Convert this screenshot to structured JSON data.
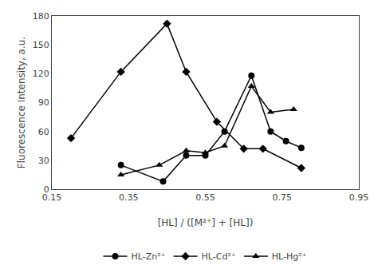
{
  "chart_data": {
    "type": "line",
    "xlabel": "[HL] / ([M²⁺] + [HL])",
    "ylabel": "Fluorescence Intensity, a.u.",
    "series": [
      {
        "name": "HL-Zn²⁺",
        "color": "black",
        "marker": "circle",
        "x": [
          0.33,
          0.44,
          0.5,
          0.55,
          0.6,
          0.67,
          0.72,
          0.76,
          0.8
        ],
        "values": [
          25,
          8,
          35,
          35,
          60,
          118,
          60,
          50,
          43
        ]
      },
      {
        "name": "HL-Cd²⁺",
        "color": "black",
        "marker": "diamond",
        "x": [
          0.2,
          0.33,
          0.45,
          0.5,
          0.58,
          0.65,
          0.7,
          0.8
        ],
        "values": [
          53,
          122,
          172,
          122,
          70,
          42,
          42,
          22
        ]
      },
      {
        "name": "HL-Hg²⁺",
        "color": "black",
        "marker": "triangle-up",
        "x": [
          0.33,
          0.43,
          0.5,
          0.55,
          0.6,
          0.67,
          0.72,
          0.78
        ],
        "values": [
          15,
          25,
          40,
          38,
          45,
          107,
          80,
          83
        ]
      }
    ],
    "xlim": [
      0.15,
      0.95
    ],
    "ylim": [
      0,
      180
    ],
    "xticks": [
      0.15,
      0.35,
      0.55,
      0.75,
      0.95
    ],
    "yticks": [
      0,
      30,
      60,
      90,
      120,
      150,
      180
    ],
    "grid": false,
    "legend": "bottom"
  }
}
